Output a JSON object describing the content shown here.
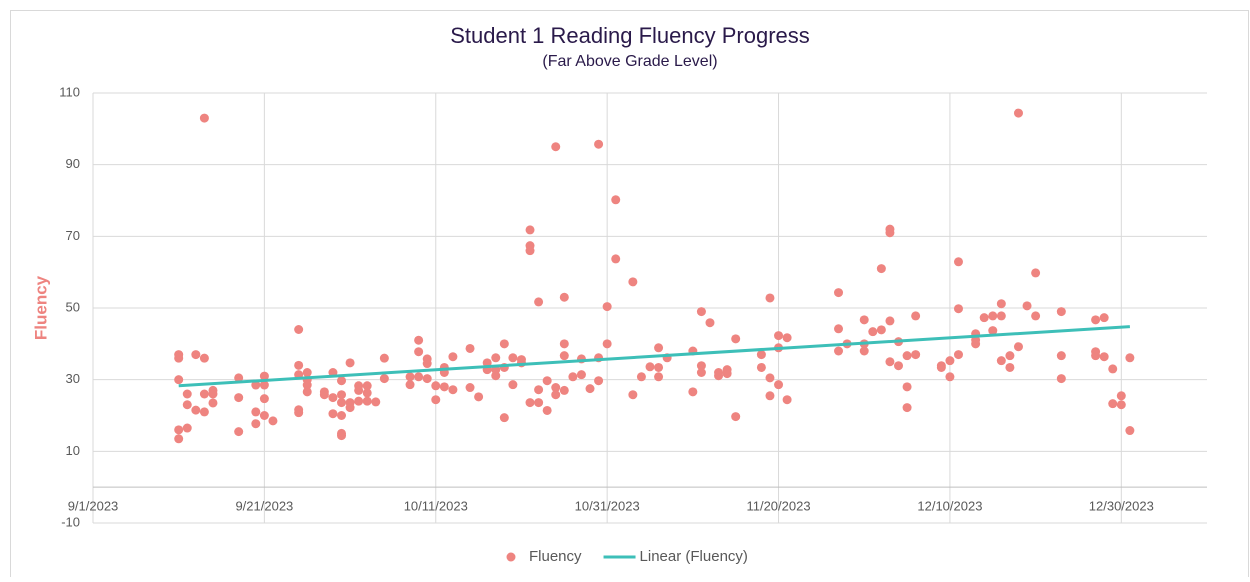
{
  "chart_data": {
    "type": "scatter",
    "title": "Student 1 Reading Fluency Progress",
    "subtitle": "(Far Above Grade Level)",
    "ylabel": "Fluency",
    "xlim": [
      "2023-09-01",
      "2024-01-09"
    ],
    "xticks": [
      {
        "value": "2023-09-01",
        "label": "9/1/2023"
      },
      {
        "value": "2023-09-21",
        "label": "9/21/2023"
      },
      {
        "value": "2023-10-11",
        "label": "10/11/2023"
      },
      {
        "value": "2023-10-31",
        "label": "10/31/2023"
      },
      {
        "value": "2023-11-20",
        "label": "11/20/2023"
      },
      {
        "value": "2023-12-10",
        "label": "12/10/2023"
      },
      {
        "value": "2023-12-30",
        "label": "12/30/2023"
      }
    ],
    "ylim": [
      -10,
      110
    ],
    "yticks": [
      -10,
      10,
      30,
      50,
      70,
      90,
      110
    ],
    "grid": true,
    "legend": "bottom",
    "series": [
      {
        "name": "Fluency",
        "type": "scatter",
        "color": "#ee8480",
        "x": [
          "2023-09-11",
          "2023-09-11",
          "2023-09-11",
          "2023-09-11",
          "2023-09-11",
          "2023-09-12",
          "2023-09-12",
          "2023-09-12",
          "2023-09-13",
          "2023-09-13",
          "2023-09-14",
          "2023-09-14",
          "2023-09-14",
          "2023-09-14",
          "2023-09-15",
          "2023-09-15",
          "2023-09-15",
          "2023-09-18",
          "2023-09-18",
          "2023-09-18",
          "2023-09-20",
          "2023-09-20",
          "2023-09-20",
          "2023-09-21",
          "2023-09-21",
          "2023-09-21",
          "2023-09-21",
          "2023-09-22",
          "2023-09-25",
          "2023-09-25",
          "2023-09-25",
          "2023-09-25",
          "2023-09-25",
          "2023-09-26",
          "2023-09-26",
          "2023-09-26",
          "2023-09-26",
          "2023-09-28",
          "2023-09-28",
          "2023-09-29",
          "2023-09-29",
          "2023-09-29",
          "2023-09-30",
          "2023-09-30",
          "2023-09-30",
          "2023-09-30",
          "2023-09-30",
          "2023-09-30",
          "2023-10-01",
          "2023-10-01",
          "2023-10-01",
          "2023-10-02",
          "2023-10-02",
          "2023-10-02",
          "2023-10-03",
          "2023-10-03",
          "2023-10-03",
          "2023-10-04",
          "2023-10-05",
          "2023-10-05",
          "2023-10-08",
          "2023-10-08",
          "2023-10-09",
          "2023-10-09",
          "2023-10-09",
          "2023-10-10",
          "2023-10-10",
          "2023-10-10",
          "2023-10-11",
          "2023-10-11",
          "2023-10-12",
          "2023-10-12",
          "2023-10-12",
          "2023-10-13",
          "2023-10-13",
          "2023-10-15",
          "2023-10-15",
          "2023-10-16",
          "2023-10-17",
          "2023-10-17",
          "2023-10-18",
          "2023-10-18",
          "2023-10-18",
          "2023-10-19",
          "2023-10-19",
          "2023-10-19",
          "2023-10-20",
          "2023-10-20",
          "2023-10-21",
          "2023-10-21",
          "2023-10-22",
          "2023-10-22",
          "2023-10-22",
          "2023-10-22",
          "2023-10-23",
          "2023-10-23",
          "2023-10-23",
          "2023-10-24",
          "2023-10-24",
          "2023-10-25",
          "2023-10-25",
          "2023-10-25",
          "2023-10-26",
          "2023-10-26",
          "2023-10-26",
          "2023-10-26",
          "2023-10-27",
          "2023-10-28",
          "2023-10-28",
          "2023-10-29",
          "2023-10-30",
          "2023-10-30",
          "2023-10-30",
          "2023-10-31",
          "2023-10-31",
          "2023-11-01",
          "2023-11-01",
          "2023-11-03",
          "2023-11-03",
          "2023-11-04",
          "2023-11-05",
          "2023-11-06",
          "2023-11-06",
          "2023-11-06",
          "2023-11-07",
          "2023-11-10",
          "2023-11-10",
          "2023-11-11",
          "2023-11-11",
          "2023-11-11",
          "2023-11-12",
          "2023-11-13",
          "2023-11-13",
          "2023-11-14",
          "2023-11-14",
          "2023-11-15",
          "2023-11-15",
          "2023-11-18",
          "2023-11-18",
          "2023-11-19",
          "2023-11-19",
          "2023-11-19",
          "2023-11-20",
          "2023-11-20",
          "2023-11-20",
          "2023-11-21",
          "2023-11-21",
          "2023-11-27",
          "2023-11-27",
          "2023-11-27",
          "2023-11-28",
          "2023-11-30",
          "2023-11-30",
          "2023-11-30",
          "2023-12-01",
          "2023-12-02",
          "2023-12-02",
          "2023-12-03",
          "2023-12-03",
          "2023-12-03",
          "2023-12-03",
          "2023-12-04",
          "2023-12-04",
          "2023-12-05",
          "2023-12-05",
          "2023-12-05",
          "2023-12-06",
          "2023-12-06",
          "2023-12-09",
          "2023-12-09",
          "2023-12-10",
          "2023-12-10",
          "2023-12-11",
          "2023-12-11",
          "2023-12-11",
          "2023-12-13",
          "2023-12-13",
          "2023-12-13",
          "2023-12-14",
          "2023-12-15",
          "2023-12-15",
          "2023-12-16",
          "2023-12-16",
          "2023-12-16",
          "2023-12-17",
          "2023-12-17",
          "2023-12-18",
          "2023-12-18",
          "2023-12-19",
          "2023-12-20",
          "2023-12-20",
          "2023-12-23",
          "2023-12-23",
          "2023-12-23",
          "2023-12-27",
          "2023-12-27",
          "2023-12-27",
          "2023-12-28",
          "2023-12-28",
          "2023-12-29",
          "2023-12-29",
          "2023-12-30",
          "2023-12-30",
          "2023-12-31",
          "2023-12-31"
        ],
        "values": [
          37,
          36,
          30,
          16,
          13.5,
          26,
          23,
          16.5,
          37,
          21.5,
          103,
          36,
          26,
          21,
          27,
          26,
          23.5,
          30.5,
          25,
          15.5,
          28.5,
          21,
          17.7,
          31,
          28.5,
          24.7,
          20,
          18.5,
          44,
          34,
          31.4,
          21.6,
          20.8,
          32,
          30,
          26.6,
          28.5,
          26.6,
          25.8,
          32,
          25,
          20.5,
          29.7,
          25.8,
          23.6,
          20,
          15,
          14.4,
          34.7,
          23.6,
          22.2,
          28.3,
          27,
          24,
          28.3,
          26.3,
          24,
          23.8,
          36,
          30.3,
          30.8,
          28.6,
          41,
          37.8,
          30.8,
          35.8,
          34.5,
          30.3,
          28.3,
          24.4,
          33.4,
          32,
          28,
          36.4,
          27.2,
          38.7,
          27.8,
          25.2,
          34.7,
          32.8,
          36.1,
          32.8,
          31.1,
          40,
          33.4,
          19.4,
          36.1,
          28.6,
          35.6,
          34.7,
          71.8,
          67.4,
          66,
          23.6,
          51.7,
          27.2,
          23.6,
          29.7,
          21.4,
          95,
          27.8,
          25.8,
          53,
          40,
          36.7,
          27,
          30.8,
          35.8,
          31.4,
          27.5,
          95.7,
          36.1,
          29.7,
          50.4,
          40,
          80.2,
          63.7,
          57.3,
          25.8,
          30.8,
          33.6,
          38.9,
          33.4,
          30.8,
          36.1,
          38,
          26.6,
          49,
          33.9,
          32,
          45.9,
          32,
          31.1,
          32.8,
          31.7,
          41.4,
          19.7,
          37,
          33.4,
          52.8,
          30.5,
          25.5,
          42.3,
          38.9,
          28.6,
          41.7,
          24.4,
          54.3,
          44.2,
          38,
          40,
          46.7,
          40,
          38,
          43.4,
          61,
          43.9,
          72,
          71,
          46.4,
          35,
          40.6,
          33.9,
          36.7,
          28,
          22.2,
          47.8,
          37,
          33.9,
          33.4,
          35.3,
          30.8,
          62.9,
          49.8,
          37,
          42.8,
          41.1,
          40,
          47.3,
          47.8,
          43.7,
          51.2,
          47.8,
          35.3,
          36.7,
          33.4,
          104.4,
          39.2,
          50.6,
          59.8,
          47.8,
          49,
          36.7,
          30.3,
          46.7,
          37.8,
          36.7,
          47.3,
          36.4,
          33,
          23.3,
          25.5,
          23,
          36.1,
          15.8
        ]
      },
      {
        "name": "Linear (Fluency)",
        "type": "line",
        "color": "#3dbfb8",
        "x": [
          "2023-09-11",
          "2023-12-31"
        ],
        "values": [
          28.3,
          44.8
        ]
      }
    ]
  }
}
